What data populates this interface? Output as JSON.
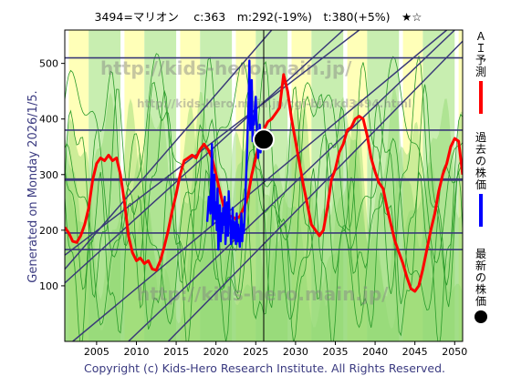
{
  "header": {
    "title": "3494=マリオン　 c:363　m:292(-19%)　t:380(+5%)　★☆"
  },
  "side_text": "Generated on Monday 2026/1/5.",
  "footer": "Copyright (c) Kids-Hero Research Institute. All Rights Reserved.",
  "watermarks": [
    "http://kids-hero.main.jp/",
    "http://kids-hero.main.jp/cgi-bin/kd3494.html",
    "http://kids-hero.main.jp/"
  ],
  "legend": [
    {
      "label": "ＡＩ予測",
      "color": "#ff0000"
    },
    {
      "label": "過去の株価",
      "color": "#0000ff"
    },
    {
      "label": "最新の株価",
      "color": "#000000"
    }
  ],
  "colors": {
    "background": "#ffffff",
    "yellow_band": "#ffffb8",
    "light_green": "#c8eeb0",
    "green_fill": "#90d870",
    "green_line": "#2a9a2a",
    "dark_line": "#3a3a78",
    "h_line": "#3a3a78",
    "ai_line": "#ff0000",
    "price_line": "#0000ff",
    "marker": "#000000"
  },
  "chart_data": {
    "type": "line",
    "title": "3494=マリオン　 c:363　m:292(-19%)　t:380(+5%)　★☆",
    "xlim": [
      2001,
      2051
    ],
    "ylim": [
      0,
      560
    ],
    "x_ticks": [
      2005,
      2010,
      2015,
      2020,
      2025,
      2030,
      2035,
      2040,
      2045,
      2050
    ],
    "y_ticks": [
      100,
      200,
      300,
      400,
      500
    ],
    "horizontal_lines": [
      510,
      380,
      292,
      290,
      195,
      165
    ],
    "diagonal_lines": [
      {
        "x": [
          2001,
          2027
        ],
        "y": [
          130,
          560
        ]
      },
      {
        "x": [
          2001,
          2038
        ],
        "y": [
          155,
          560
        ]
      },
      {
        "x": [
          2002,
          2049
        ],
        "y": [
          0,
          560
        ]
      },
      {
        "x": [
          2009,
          2050
        ],
        "y": [
          0,
          560
        ]
      },
      {
        "x": [
          2014,
          2051
        ],
        "y": [
          0,
          540
        ]
      },
      {
        "x": [
          2001,
          2036
        ],
        "y": [
          105,
          560
        ]
      }
    ],
    "current": {
      "x": 2026.0,
      "y": 363
    },
    "series": [
      {
        "name": "ＡＩ予測",
        "x": [
          2001,
          2001.5,
          2002,
          2002.5,
          2003,
          2003.5,
          2004,
          2004.5,
          2005,
          2005.5,
          2006,
          2006.5,
          2007,
          2007.5,
          2008,
          2008.5,
          2009,
          2009.5,
          2010,
          2010.5,
          2011,
          2011.5,
          2012,
          2012.5,
          2013,
          2013.5,
          2014,
          2014.5,
          2015,
          2015.5,
          2016,
          2016.5,
          2017,
          2017.5,
          2018,
          2018.5,
          2019,
          2019.5,
          2020,
          2020.5,
          2021,
          2021.5,
          2022,
          2022.5,
          2023,
          2023.5,
          2024,
          2024.5,
          2025,
          2025.5,
          2026,
          2026.5,
          2027,
          2027.5,
          2028,
          2028.5,
          2029,
          2029.5,
          2030,
          2030.5,
          2031,
          2031.5,
          2032,
          2032.5,
          2033,
          2033.5,
          2034,
          2034.5,
          2035,
          2035.5,
          2036,
          2036.5,
          2037,
          2037.5,
          2038,
          2038.5,
          2039,
          2039.5,
          2040,
          2040.5,
          2041,
          2041.5,
          2042,
          2042.5,
          2043,
          2043.5,
          2044,
          2044.5,
          2045,
          2045.5,
          2046,
          2046.5,
          2047,
          2047.5,
          2048,
          2048.5,
          2049,
          2049.5,
          2050,
          2050.5,
          2051
        ],
        "y": [
          205,
          195,
          180,
          178,
          190,
          210,
          240,
          290,
          320,
          330,
          325,
          335,
          325,
          330,
          300,
          250,
          190,
          160,
          145,
          150,
          140,
          145,
          130,
          128,
          145,
          170,
          200,
          235,
          265,
          300,
          325,
          330,
          335,
          330,
          345,
          355,
          345,
          330,
          300,
          270,
          240,
          225,
          225,
          220,
          225,
          240,
          260,
          300,
          330,
          360,
          380,
          395,
          400,
          410,
          420,
          480,
          450,
          400,
          360,
          320,
          280,
          245,
          210,
          200,
          190,
          200,
          240,
          290,
          310,
          340,
          355,
          380,
          385,
          400,
          405,
          400,
          370,
          330,
          305,
          285,
          275,
          240,
          210,
          180,
          160,
          140,
          115,
          95,
          90,
          100,
          130,
          165,
          200,
          230,
          270,
          300,
          320,
          350,
          365,
          360,
          300
        ],
        "color": "#ff0000"
      },
      {
        "name": "過去の株価",
        "x": [
          2018.9,
          2019.1,
          2019.3,
          2019.5,
          2019.6,
          2019.7,
          2019.8,
          2019.9,
          2020.0,
          2020.1,
          2020.2,
          2020.3,
          2020.4,
          2020.5,
          2020.6,
          2020.7,
          2020.8,
          2020.9,
          2021.0,
          2021.1,
          2021.2,
          2021.3,
          2021.4,
          2021.5,
          2021.6,
          2021.7,
          2021.8,
          2021.9,
          2022.0,
          2022.1,
          2022.2,
          2022.3,
          2022.4,
          2022.5,
          2022.6,
          2022.7,
          2022.8,
          2022.9,
          2023.0,
          2023.1,
          2023.2,
          2023.3,
          2023.4,
          2023.5,
          2023.6,
          2023.7,
          2023.8,
          2023.9,
          2024.0,
          2024.1,
          2024.2,
          2024.3,
          2024.4,
          2024.5,
          2024.6,
          2024.7,
          2024.8,
          2024.9,
          2025.0,
          2025.1,
          2025.2,
          2025.3,
          2025.4,
          2025.5,
          2025.6,
          2025.7,
          2025.8,
          2025.9,
          2026.0
        ],
        "y": [
          215,
          260,
          230,
          355,
          210,
          240,
          300,
          220,
          250,
          200,
          275,
          165,
          220,
          245,
          180,
          230,
          195,
          240,
          210,
          260,
          175,
          205,
          250,
          190,
          270,
          230,
          210,
          175,
          200,
          240,
          185,
          215,
          200,
          175,
          230,
          180,
          210,
          190,
          170,
          200,
          230,
          180,
          210,
          195,
          225,
          260,
          300,
          340,
          390,
          430,
          505,
          380,
          430,
          470,
          360,
          405,
          390,
          420,
          440,
          395,
          360,
          330,
          360,
          390,
          340,
          370,
          350,
          365,
          363
        ],
        "color": "#0000ff"
      }
    ]
  }
}
